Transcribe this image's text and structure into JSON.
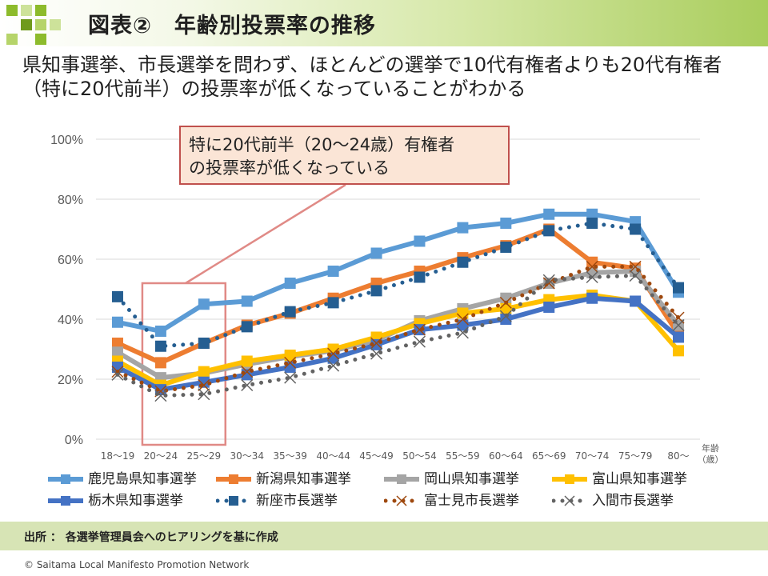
{
  "header": {
    "title": "図表②　年齢別投票率の推移"
  },
  "subtitle": "県知事選挙、市長選挙を問わず、ほとんどの選挙で10代有権者よりも20代有権者（特に20代前半）の投票率が低くなっていることがわかる",
  "callout": {
    "line1": "特に20代前半（20～24歳）有権者",
    "line2": "の投票率が低くなっている"
  },
  "footer": {
    "source": "出所 ： 各選挙管理員会へのヒアリングを基に作成",
    "copyright": "© Saitama Local Manifesto Promotion Network"
  },
  "chart_data": {
    "type": "line",
    "title": "",
    "xlabel": "年齢（歳）",
    "ylabel": "",
    "x_axis_unit_line1": "年齢",
    "x_axis_unit_line2": "（歳）",
    "categories": [
      "18～19",
      "20～24",
      "25～29",
      "30～34",
      "35～39",
      "40～44",
      "45～49",
      "50～54",
      "55～59",
      "60～64",
      "65～69",
      "70～74",
      "75～79",
      "80～"
    ],
    "yticks": [
      "0%",
      "20%",
      "40%",
      "60%",
      "80%",
      "100%"
    ],
    "ylim": [
      0,
      100
    ],
    "grid": true,
    "legend_position": "bottom",
    "series": [
      {
        "name": "鹿児島県知事選挙",
        "color": "#5b9bd5",
        "style": "solid",
        "marker": "square",
        "values": [
          39,
          36,
          45,
          46,
          52,
          56,
          62,
          66,
          70.5,
          72,
          75,
          75,
          72.5,
          49
        ]
      },
      {
        "name": "新潟県知事選挙",
        "color": "#ed7d31",
        "style": "solid",
        "marker": "square",
        "values": [
          32,
          25.5,
          32,
          38,
          42,
          47,
          52,
          56,
          60.5,
          64.5,
          70,
          59,
          57,
          35
        ]
      },
      {
        "name": "岡山県知事選挙",
        "color": "#a5a5a5",
        "style": "solid",
        "marker": "square",
        "values": [
          29,
          20.5,
          22,
          25,
          27.5,
          29.5,
          33,
          39.5,
          43.5,
          47,
          52,
          55.5,
          56,
          38
        ]
      },
      {
        "name": "富山県知事選挙",
        "color": "#ffc000",
        "style": "solid",
        "marker": "square",
        "values": [
          26,
          18,
          22.5,
          26,
          28,
          30,
          34,
          38.5,
          42,
          43.5,
          46.5,
          48,
          46,
          29.5
        ]
      },
      {
        "name": "栃木県知事選挙",
        "color": "#4472c4",
        "style": "solid",
        "marker": "square",
        "values": [
          24,
          16.5,
          19,
          21.5,
          24,
          27,
          31.5,
          36.5,
          38,
          40,
          44,
          47,
          46,
          34
        ]
      },
      {
        "name": "新座市長選挙",
        "color": "#255e91",
        "style": "dotted",
        "marker": "square",
        "values": [
          47.5,
          31,
          32,
          37.5,
          42.5,
          45.5,
          49.5,
          54,
          59,
          64,
          69.5,
          72,
          70,
          50.5
        ]
      },
      {
        "name": "富士見市長選挙",
        "color": "#9e480e",
        "style": "dotted",
        "marker": "x",
        "values": [
          22.5,
          16,
          18,
          22.5,
          25.5,
          28.5,
          32,
          36.5,
          40,
          45.5,
          52,
          57.5,
          57.5,
          40.5
        ]
      },
      {
        "name": "入間市長選挙",
        "color": "#636363",
        "style": "dotted",
        "marker": "x",
        "values": [
          21.5,
          14.5,
          15,
          18,
          20.5,
          24.5,
          28.5,
          32.5,
          35.5,
          41,
          53,
          54,
          54.5,
          38
        ]
      }
    ]
  }
}
